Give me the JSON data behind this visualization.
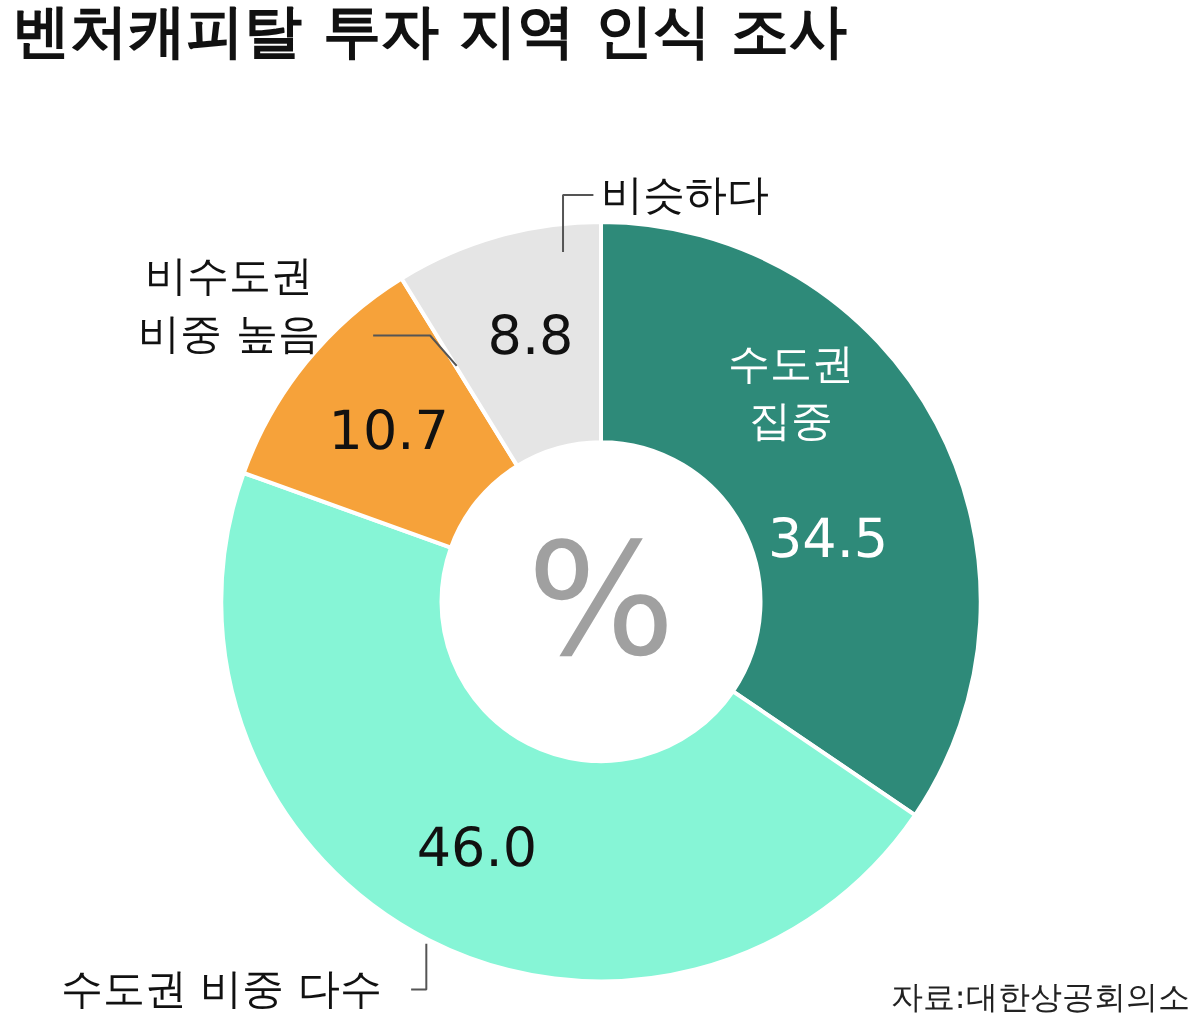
{
  "chart_data": {
    "type": "donut",
    "title": "벤처캐피탈 투자 지역 인식 조사",
    "categories": [
      "수도권\n집중",
      "수도권 비중 다수",
      "비수도권\n비중 높음",
      "비슷하다"
    ],
    "values": [
      34.5,
      46.0,
      10.7,
      8.8
    ],
    "colors": [
      "#2e8a79",
      "#86f5d6",
      "#f6a23a",
      "#e5e5e5"
    ],
    "value_labels": [
      "34.5",
      "46.0",
      "10.7",
      "8.8"
    ],
    "annotations": [
      "%",
      "자료:대한상공회의소"
    ]
  }
}
